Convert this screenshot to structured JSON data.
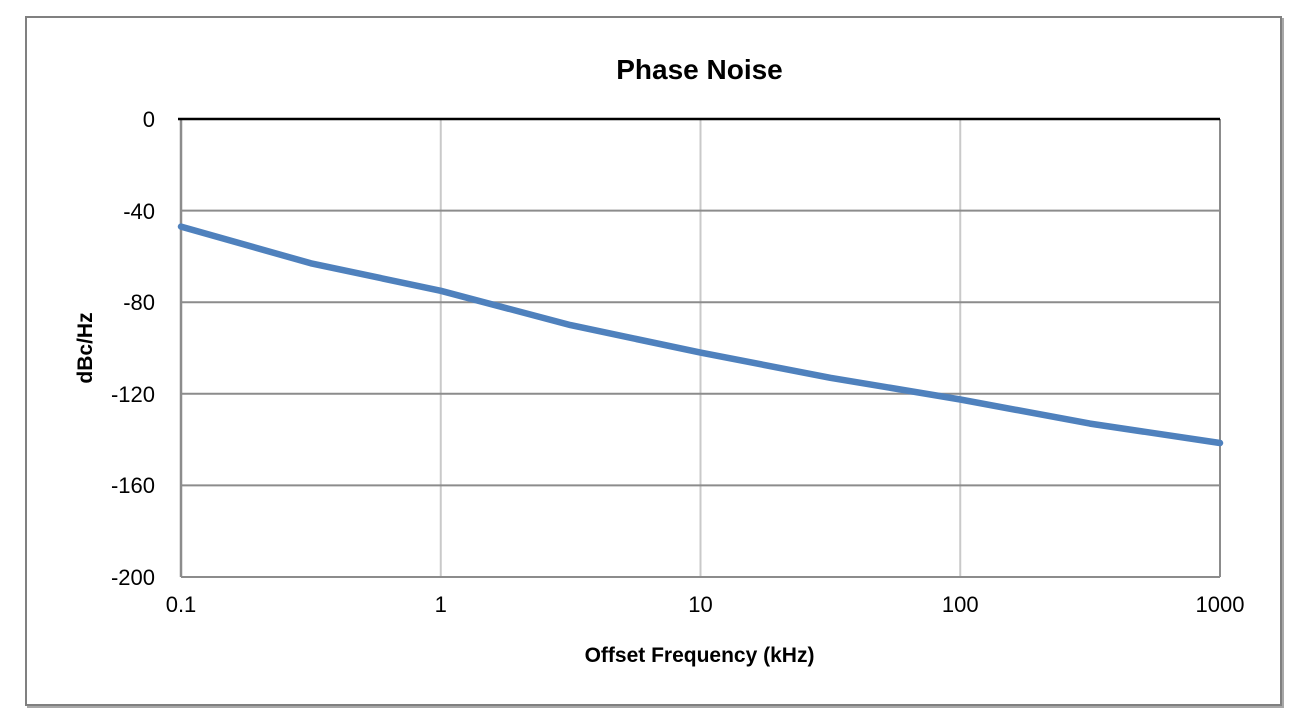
{
  "chart_data": {
    "type": "line",
    "title": "Phase Noise",
    "xlabel": "Offset Frequency (kHz)",
    "ylabel": "dBc/Hz",
    "x_scale": "log10",
    "xlim": [
      0.1,
      1000
    ],
    "ylim": [
      -200,
      0
    ],
    "xticks": [
      0.1,
      1,
      10,
      100,
      1000
    ],
    "xtick_labels": [
      "0.1",
      "1",
      "10",
      "100",
      "1000"
    ],
    "yticks": [
      0,
      -40,
      -80,
      -120,
      -160,
      -200
    ],
    "ytick_labels": [
      "0",
      "-40",
      "-80",
      "-120",
      "-160",
      "-200"
    ],
    "grid": true,
    "legend": false,
    "series": [
      {
        "name": "Phase Noise",
        "color": "#4F81BD",
        "x": [
          0.1,
          0.316,
          1,
          3.16,
          10,
          31.6,
          100,
          316,
          1000
        ],
        "y": [
          -47,
          -63,
          -75,
          -90,
          -102,
          -113,
          -122.5,
          -133,
          -141.5
        ]
      }
    ]
  },
  "colors": {
    "line": "#4F81BD",
    "grid_horizontal": "#8C8C8C",
    "grid_vertical": "#C9C9C9",
    "axis_left": "#8C8C8C",
    "axis_right": "#8C8C8C",
    "zero_line": "#000000",
    "frame_border": "#808080",
    "text": "#000000"
  }
}
